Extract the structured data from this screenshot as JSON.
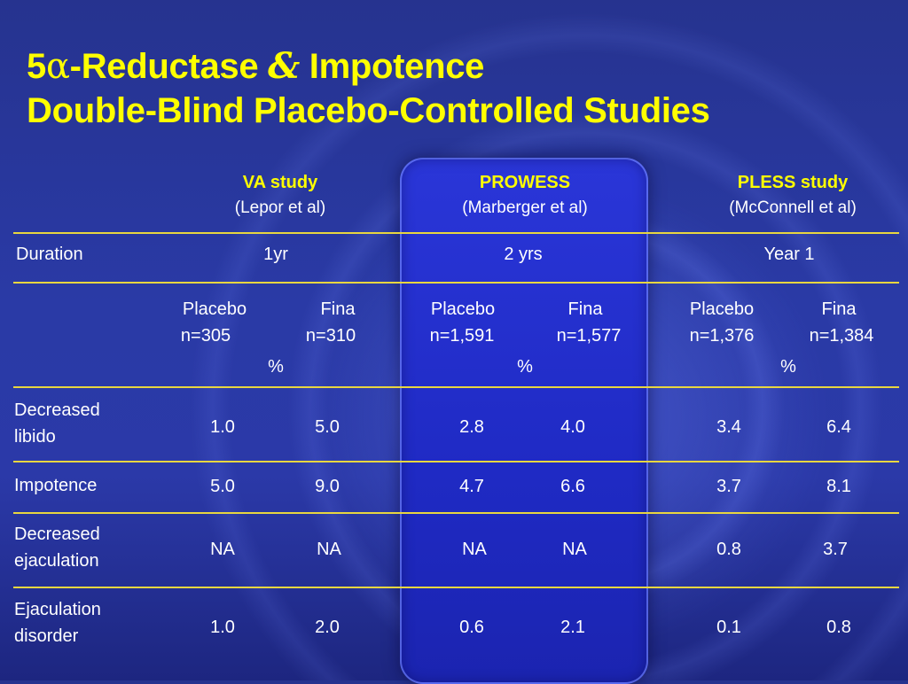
{
  "title": {
    "line1_num": "5",
    "line1_greek": "α",
    "line1_a": "-Reductase ",
    "line1_amp": "&",
    "line1_b": " Impotence",
    "line2": "Double-Blind Placebo-Controlled Studies"
  },
  "studies": [
    {
      "name": "VA study",
      "ref": "(Lepor et al)",
      "duration": "1yr",
      "arm1": "Placebo",
      "arm1_n": "n=305",
      "arm2": "Fina",
      "arm2_n": "n=310",
      "unit": "%"
    },
    {
      "name": "PROWESS",
      "ref": "(Marberger et al)",
      "duration": "2 yrs",
      "arm1": "Placebo",
      "arm1_n": "n=1,591",
      "arm2": "Fina",
      "arm2_n": "n=1,577",
      "unit": "%"
    },
    {
      "name": "PLESS study",
      "ref": "(McConnell et al)",
      "duration": "Year 1",
      "arm1": "Placebo",
      "arm1_n": "n=1,376",
      "arm2": "Fina",
      "arm2_n": "n=1,384",
      "unit": "%"
    }
  ],
  "duration_label": "Duration",
  "rows": [
    {
      "label1": "Decreased",
      "label2": "libido",
      "values": [
        "1.0",
        "5.0",
        "2.8",
        "4.0",
        "3.4",
        "6.4"
      ]
    },
    {
      "label1": "Impotence",
      "label2": "",
      "values": [
        "5.0",
        "9.0",
        "4.7",
        "6.6",
        "3.7",
        "8.1"
      ]
    },
    {
      "label1": "Decreased",
      "label2": "ejaculation",
      "values": [
        "NA",
        "NA",
        "NA",
        "NA",
        "0.8",
        "3.7"
      ]
    },
    {
      "label1": "Ejaculation",
      "label2": "disorder",
      "values": [
        "1.0",
        "2.0",
        "0.6",
        "2.1",
        "0.1",
        "0.8"
      ]
    }
  ]
}
